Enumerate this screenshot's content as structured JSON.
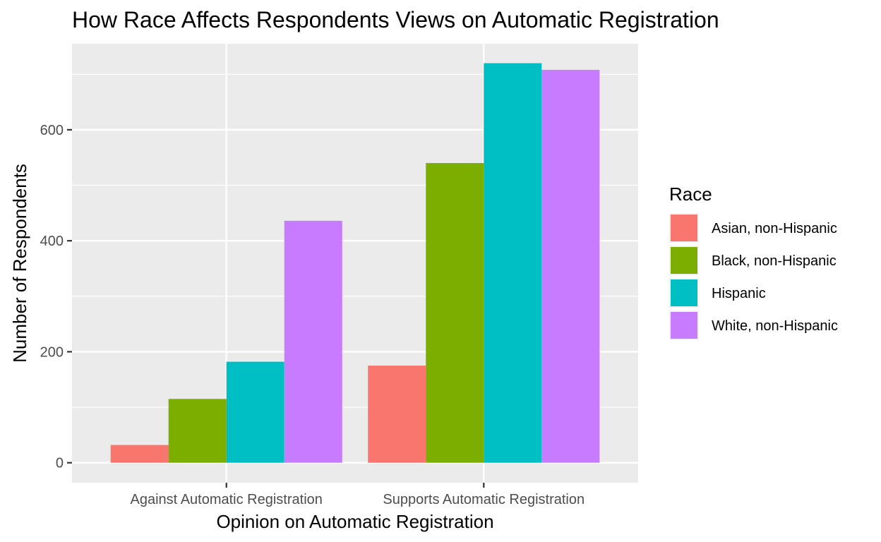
{
  "chart_data": {
    "type": "bar",
    "title": "How Race Affects Respondents Views on Automatic Registration",
    "xlabel": "Opinion on Automatic Registration",
    "ylabel": "Number of Respondents",
    "categories": [
      "Against Automatic Registration",
      "Supports Automatic Registration"
    ],
    "series": [
      {
        "name": "Asian, non-Hispanic",
        "color": "#F8766D",
        "values": [
          32,
          175
        ]
      },
      {
        "name": "Black, non-Hispanic",
        "color": "#7CAE00",
        "values": [
          115,
          540
        ]
      },
      {
        "name": "Hispanic",
        "color": "#00BFC4",
        "values": [
          182,
          720
        ]
      },
      {
        "name": "White, non-Hispanic",
        "color": "#C77CFF",
        "values": [
          436,
          708
        ]
      }
    ],
    "yticks": [
      0,
      200,
      400,
      600
    ],
    "ylim": [
      -36,
      755
    ],
    "grid": true,
    "legend": {
      "title": "Race",
      "position": "right"
    },
    "panel_background": "#EBEBEB",
    "grid_color": "#FFFFFF"
  }
}
